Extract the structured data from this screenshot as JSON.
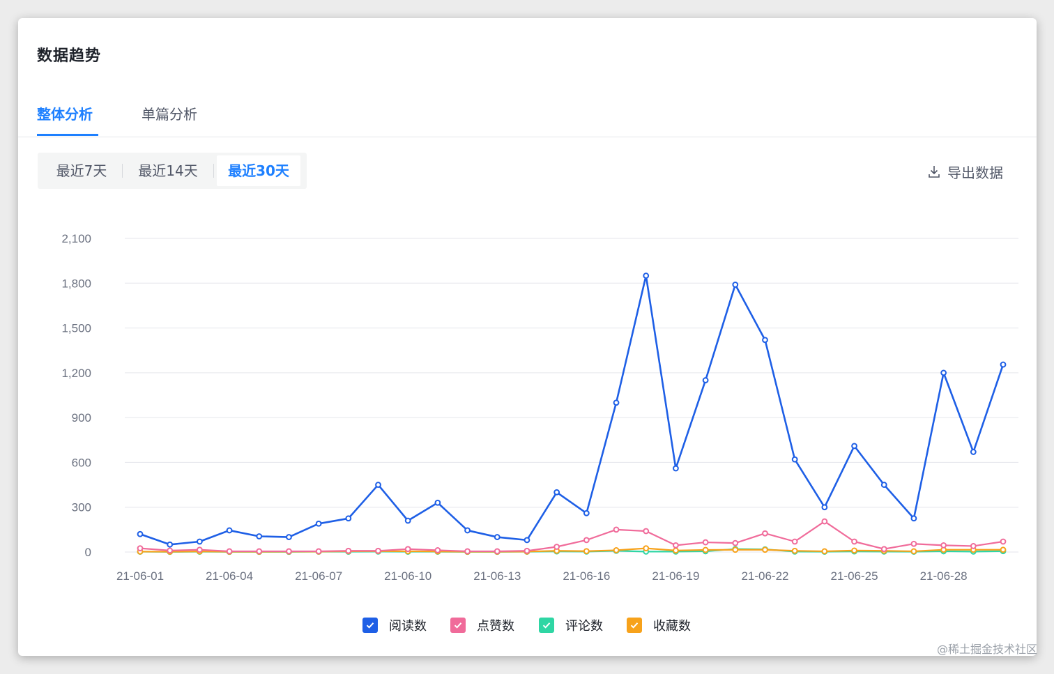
{
  "page": {
    "title": "数据趋势",
    "watermark": "@稀土掘金技术社区"
  },
  "tabs": [
    {
      "label": "整体分析",
      "active": true
    },
    {
      "label": "单篇分析",
      "active": false
    }
  ],
  "ranges": [
    {
      "label": "最近7天",
      "active": false
    },
    {
      "label": "最近14天",
      "active": false
    },
    {
      "label": "最近30天",
      "active": true
    }
  ],
  "export": {
    "label": "导出数据",
    "icon": "download-icon"
  },
  "colors": {
    "accent": "#1e80ff",
    "read": "#1e5fe6",
    "like": "#f06b9a",
    "comment": "#2fd6a4",
    "collect": "#f7a21b",
    "grid": "#e5e6eb",
    "axis_text": "#6b7180"
  },
  "chart_data": {
    "type": "line",
    "title": "",
    "xlabel": "",
    "ylabel": "",
    "ylim": [
      0,
      2100
    ],
    "yticks": [
      0,
      300,
      600,
      900,
      1200,
      1500,
      1800,
      2100
    ],
    "ytick_labels": [
      "0",
      "300",
      "600",
      "900",
      "1,200",
      "1,500",
      "1,800",
      "2,100"
    ],
    "x": [
      "21-06-01",
      "21-06-02",
      "21-06-03",
      "21-06-04",
      "21-06-05",
      "21-06-06",
      "21-06-07",
      "21-06-08",
      "21-06-09",
      "21-06-10",
      "21-06-11",
      "21-06-12",
      "21-06-13",
      "21-06-14",
      "21-06-15",
      "21-06-16",
      "21-06-17",
      "21-06-18",
      "21-06-19",
      "21-06-20",
      "21-06-21",
      "21-06-22",
      "21-06-23",
      "21-06-24",
      "21-06-25",
      "21-06-26",
      "21-06-27",
      "21-06-28",
      "21-06-29",
      "21-06-30"
    ],
    "x_tick_labels": [
      "21-06-01",
      "21-06-04",
      "21-06-07",
      "21-06-10",
      "21-06-13",
      "21-06-16",
      "21-06-19",
      "21-06-22",
      "21-06-25",
      "21-06-28"
    ],
    "grid": true,
    "legend_position": "bottom",
    "series": [
      {
        "name": "阅读数",
        "color_key": "read",
        "values": [
          120,
          50,
          70,
          145,
          105,
          100,
          190,
          225,
          450,
          210,
          330,
          145,
          100,
          80,
          400,
          260,
          1000,
          1850,
          560,
          1150,
          1790,
          1420,
          620,
          300,
          710,
          450,
          225,
          1200,
          670,
          1255
        ]
      },
      {
        "name": "点赞数",
        "color_key": "like",
        "values": [
          25,
          10,
          15,
          5,
          5,
          5,
          5,
          8,
          8,
          20,
          12,
          5,
          5,
          8,
          35,
          80,
          150,
          140,
          45,
          65,
          60,
          125,
          70,
          205,
          70,
          20,
          55,
          45,
          40,
          70
        ]
      },
      {
        "name": "评论数",
        "color_key": "comment",
        "values": [
          2,
          1,
          2,
          1,
          1,
          1,
          2,
          2,
          3,
          2,
          2,
          1,
          1,
          2,
          4,
          3,
          8,
          3,
          3,
          5,
          20,
          18,
          3,
          2,
          4,
          3,
          2,
          5,
          3,
          6
        ]
      },
      {
        "name": "收藏数",
        "color_key": "collect",
        "values": [
          3,
          2,
          4,
          2,
          2,
          3,
          3,
          5,
          6,
          5,
          4,
          2,
          2,
          3,
          8,
          6,
          12,
          25,
          10,
          14,
          15,
          15,
          8,
          5,
          10,
          8,
          5,
          15,
          15,
          15
        ]
      }
    ]
  }
}
